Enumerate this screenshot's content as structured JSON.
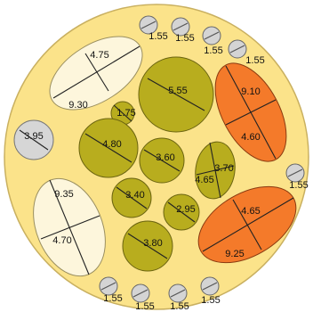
{
  "shapes": [
    {
      "labels": [
        "4.75",
        "9.30"
      ]
    },
    {
      "labels": [
        "3.95"
      ]
    },
    {
      "labels": [
        "9.35",
        "4.70"
      ]
    },
    {
      "labels": [
        "9.10",
        "4.60"
      ]
    },
    {
      "labels": [
        "4.65",
        "9.25"
      ]
    },
    {
      "labels": [
        "5.55"
      ]
    },
    {
      "labels": [
        "1.75"
      ]
    },
    {
      "labels": [
        "4.80"
      ]
    },
    {
      "labels": [
        "3.60"
      ]
    },
    {
      "labels": [
        "3.70",
        "4.65"
      ]
    },
    {
      "labels": [
        "3.40"
      ]
    },
    {
      "labels": [
        "2.95"
      ]
    },
    {
      "labels": [
        "3.80"
      ]
    },
    {
      "labels": [
        "1.55"
      ]
    },
    {
      "labels": [
        "1.55"
      ]
    },
    {
      "labels": [
        "1.55"
      ]
    },
    {
      "labels": [
        "1.55"
      ]
    },
    {
      "labels": [
        "1.55"
      ]
    },
    {
      "labels": [
        "1.55"
      ]
    },
    {
      "labels": [
        "1.55"
      ]
    },
    {
      "labels": [
        "1.55"
      ]
    },
    {
      "labels": [
        "1.55"
      ]
    }
  ]
}
